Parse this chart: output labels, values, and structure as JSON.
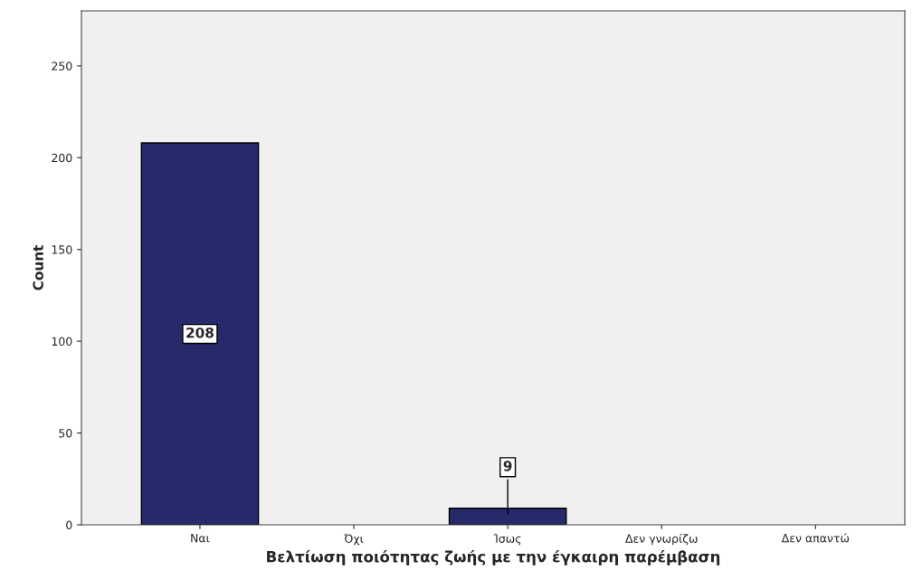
{
  "chart_data": {
    "type": "bar",
    "xlabel": "Βελτίωση ποιότητας ζωής με την έγκαιρη παρέμβαση",
    "ylabel": "Count",
    "categories": [
      "Ναι",
      "Όχι",
      "Ίσως",
      "Δεν γνωρίζω",
      "Δεν απαντώ"
    ],
    "values": [
      208,
      null,
      9,
      null,
      null
    ],
    "value_labels": [
      "208",
      null,
      "9",
      null,
      null
    ],
    "color": "#262a6b",
    "ylim": [
      0,
      280
    ],
    "yticks": [
      0,
      50,
      100,
      150,
      200,
      250
    ],
    "grid": false,
    "legend": false
  }
}
